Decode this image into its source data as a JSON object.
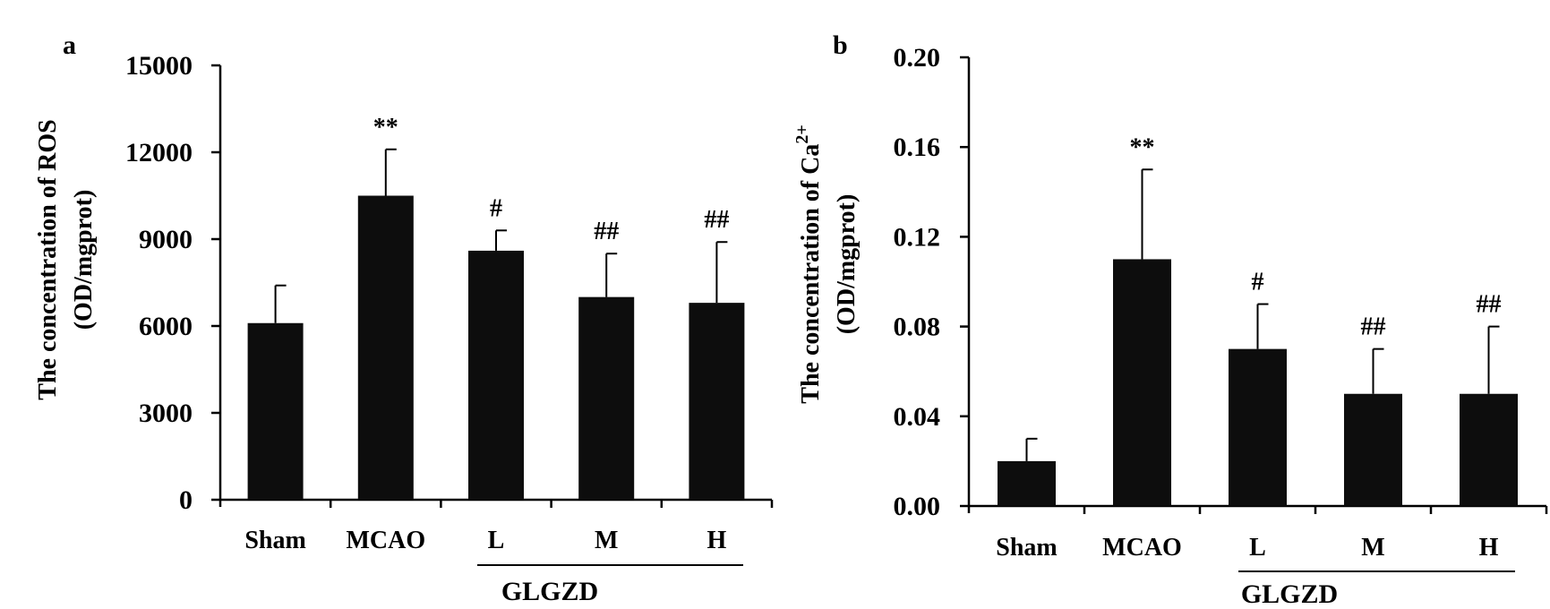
{
  "chart_data": [
    {
      "panel": "a",
      "type": "bar",
      "categories": [
        "Sham",
        "MCAO",
        "L",
        "M",
        "H"
      ],
      "values": [
        6100,
        10500,
        8600,
        7000,
        6800
      ],
      "errors": [
        1300,
        1600,
        700,
        1500,
        2100
      ],
      "significance": [
        "",
        "**",
        "#",
        "##",
        "##"
      ],
      "ylabel_line1": "The concentration of ROS",
      "ylabel_line2": "(OD/mgprot)",
      "ylim": [
        0,
        15000
      ],
      "yticks": [
        "15000",
        "12000",
        "9000",
        "6000",
        "3000",
        "0"
      ],
      "group_label": "GLGZD",
      "grid": false
    },
    {
      "panel": "b",
      "type": "bar",
      "categories": [
        "Sham",
        "MCAO",
        "L",
        "M",
        "H"
      ],
      "values": [
        0.02,
        0.11,
        0.07,
        0.05,
        0.05
      ],
      "errors": [
        0.01,
        0.04,
        0.02,
        0.02,
        0.03
      ],
      "significance": [
        "",
        "**",
        "#",
        "##",
        "##"
      ],
      "ylabel_line1_prefix": "The concentration of Ca",
      "ylabel_line1_sup": "2+",
      "ylabel_line2": "(OD/mgprot)",
      "ylim": [
        0,
        0.2
      ],
      "yticks": [
        "0.20",
        "0.16",
        "0.12",
        "0.08",
        "0.04",
        "0.00"
      ],
      "group_label": "GLGZD",
      "grid": false
    }
  ],
  "colors": {
    "bar": "#0d0d0d",
    "axis": "#000000"
  }
}
